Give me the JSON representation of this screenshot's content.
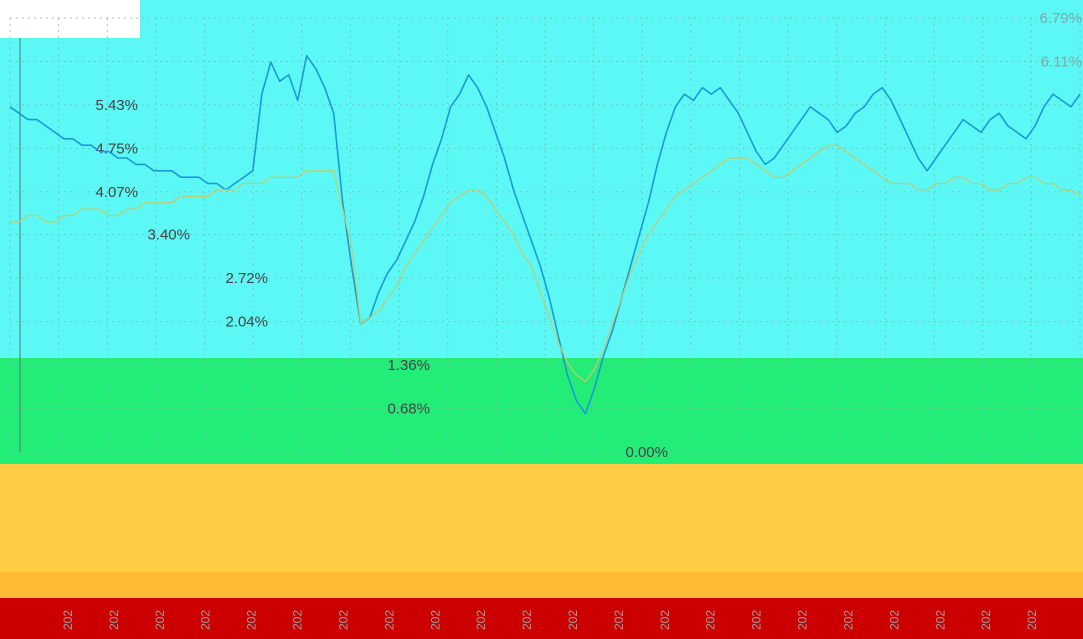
{
  "colors": {
    "primary_series": "#1b9ad6",
    "secondary_series": "#c8c86a",
    "grid": "#7fb0b0",
    "band_cyan": "#5cf8f6",
    "band_green": "#22ee77",
    "band_orange": "#ffcc44",
    "band_red": "#cc0000"
  },
  "corner_text": "",
  "chart_data": {
    "type": "line",
    "title": "",
    "xlabel": "",
    "ylabel": "",
    "ylim": [
      0,
      6.79
    ],
    "y_ticks": [
      "0.00%",
      "0.68%",
      "1.36%",
      "2.04%",
      "2.72%",
      "3.40%",
      "4.07%",
      "4.75%",
      "5.43%",
      "6.11%",
      "6.79%"
    ],
    "y_tick_values": [
      0,
      0.68,
      1.36,
      2.04,
      2.72,
      3.4,
      4.07,
      4.75,
      5.43,
      6.11,
      6.79
    ],
    "x_tick_labels": [
      "202",
      "202",
      "202",
      "202",
      "202",
      "202",
      "202",
      "202",
      "202",
      "202",
      "202",
      "202",
      "202",
      "202",
      "202",
      "202",
      "202",
      "202",
      "202",
      "202",
      "202",
      "202"
    ],
    "grid": true,
    "legend": "none",
    "series": [
      {
        "values": [
          5.4,
          5.3,
          5.2,
          5.2,
          5.1,
          5.0,
          4.9,
          4.9,
          4.8,
          4.8,
          4.7,
          4.7,
          4.6,
          4.6,
          4.5,
          4.5,
          4.4,
          4.4,
          4.4,
          4.3,
          4.3,
          4.3,
          4.2,
          4.2,
          4.1,
          4.2,
          4.3,
          4.4,
          5.6,
          6.1,
          5.8,
          5.9,
          5.5,
          6.2,
          6.0,
          5.7,
          5.3,
          3.9,
          2.9,
          2.0,
          2.1,
          2.5,
          2.8,
          3.0,
          3.3,
          3.6,
          4.0,
          4.5,
          4.9,
          5.4,
          5.6,
          5.9,
          5.7,
          5.4,
          5.0,
          4.6,
          4.1,
          3.7,
          3.3,
          2.9,
          2.4,
          1.8,
          1.2,
          0.8,
          0.6,
          1.0,
          1.5,
          1.9,
          2.4,
          2.9,
          3.4,
          3.9,
          4.5,
          5.0,
          5.4,
          5.6,
          5.5,
          5.7,
          5.6,
          5.7,
          5.5,
          5.3,
          5.0,
          4.7,
          4.5,
          4.6,
          4.8,
          5.0,
          5.2,
          5.4,
          5.3,
          5.2,
          5.0,
          5.1,
          5.3,
          5.4,
          5.6,
          5.7,
          5.5,
          5.2,
          4.9,
          4.6,
          4.4,
          4.6,
          4.8,
          5.0,
          5.2,
          5.1,
          5.0,
          5.2,
          5.3,
          5.1,
          5.0,
          4.9,
          5.1,
          5.4,
          5.6,
          5.5,
          5.4,
          5.6
        ]
      },
      {
        "values": [
          3.6,
          3.6,
          3.7,
          3.7,
          3.6,
          3.6,
          3.7,
          3.7,
          3.8,
          3.8,
          3.8,
          3.7,
          3.7,
          3.8,
          3.8,
          3.9,
          3.9,
          3.9,
          3.9,
          4.0,
          4.0,
          4.0,
          4.0,
          4.1,
          4.1,
          4.1,
          4.2,
          4.2,
          4.2,
          4.3,
          4.3,
          4.3,
          4.3,
          4.4,
          4.4,
          4.4,
          4.4,
          3.8,
          3.2,
          2.0,
          2.1,
          2.2,
          2.4,
          2.6,
          2.9,
          3.1,
          3.3,
          3.5,
          3.7,
          3.9,
          4.0,
          4.1,
          4.1,
          4.0,
          3.8,
          3.6,
          3.4,
          3.1,
          2.9,
          2.5,
          2.1,
          1.7,
          1.4,
          1.2,
          1.1,
          1.3,
          1.6,
          2.0,
          2.4,
          2.8,
          3.1,
          3.4,
          3.6,
          3.8,
          4.0,
          4.1,
          4.2,
          4.3,
          4.4,
          4.5,
          4.6,
          4.6,
          4.6,
          4.5,
          4.4,
          4.3,
          4.3,
          4.4,
          4.5,
          4.6,
          4.7,
          4.8,
          4.8,
          4.7,
          4.6,
          4.5,
          4.4,
          4.3,
          4.2,
          4.2,
          4.2,
          4.1,
          4.1,
          4.2,
          4.2,
          4.3,
          4.3,
          4.2,
          4.2,
          4.1,
          4.1,
          4.2,
          4.2,
          4.3,
          4.3,
          4.2,
          4.2,
          4.1,
          4.1,
          4.0
        ]
      }
    ]
  }
}
